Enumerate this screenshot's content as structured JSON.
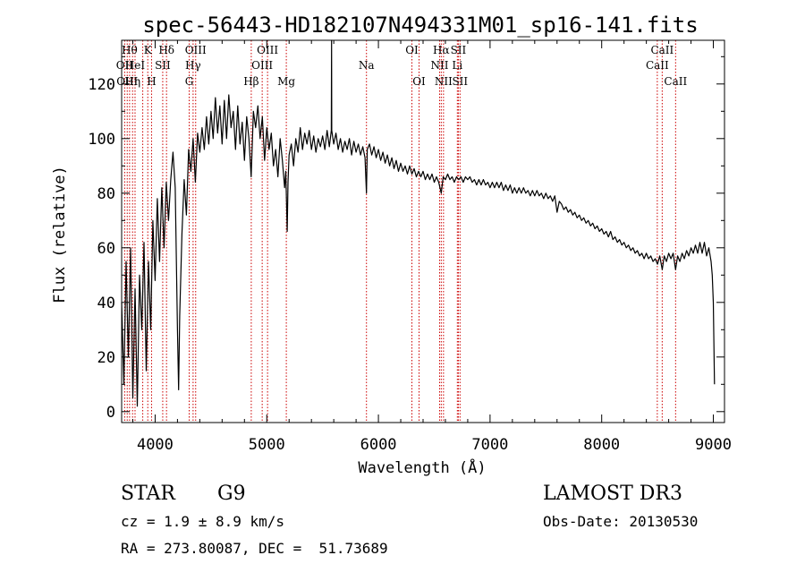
{
  "chart_data": {
    "type": "line",
    "title": "spec-56443-HD182107N494331M01_sp16-141.fits",
    "xlabel": "Wavelength (Å)",
    "ylabel": "Flux (relative)",
    "xlim": [
      3700,
      9100
    ],
    "ylim": [
      -4,
      136
    ],
    "x_ticks": [
      4000,
      5000,
      6000,
      7000,
      8000,
      9000
    ],
    "y_ticks": [
      0,
      20,
      40,
      60,
      80,
      100,
      120
    ],
    "grid": false,
    "series": [
      {
        "color": "#000000",
        "points": [
          [
            3700,
            40
          ],
          [
            3720,
            10
          ],
          [
            3740,
            55
          ],
          [
            3760,
            20
          ],
          [
            3780,
            60
          ],
          [
            3800,
            5
          ],
          [
            3820,
            45
          ],
          [
            3840,
            2
          ],
          [
            3860,
            50
          ],
          [
            3880,
            30
          ],
          [
            3900,
            62
          ],
          [
            3920,
            15
          ],
          [
            3940,
            55
          ],
          [
            3960,
            30
          ],
          [
            3980,
            70
          ],
          [
            4000,
            48
          ],
          [
            4020,
            78
          ],
          [
            4040,
            55
          ],
          [
            4060,
            82
          ],
          [
            4080,
            60
          ],
          [
            4100,
            84
          ],
          [
            4120,
            70
          ],
          [
            4140,
            85
          ],
          [
            4160,
            95
          ],
          [
            4180,
            82
          ],
          [
            4200,
            30
          ],
          [
            4210,
            8
          ],
          [
            4220,
            35
          ],
          [
            4240,
            65
          ],
          [
            4260,
            85
          ],
          [
            4280,
            72
          ],
          [
            4300,
            96
          ],
          [
            4320,
            88
          ],
          [
            4340,
            100
          ],
          [
            4360,
            84
          ],
          [
            4380,
            102
          ],
          [
            4400,
            95
          ],
          [
            4420,
            104
          ],
          [
            4440,
            96
          ],
          [
            4460,
            108
          ],
          [
            4480,
            98
          ],
          [
            4500,
            110
          ],
          [
            4520,
            100
          ],
          [
            4540,
            115
          ],
          [
            4560,
            102
          ],
          [
            4580,
            112
          ],
          [
            4600,
            98
          ],
          [
            4620,
            114
          ],
          [
            4640,
            100
          ],
          [
            4660,
            116
          ],
          [
            4680,
            104
          ],
          [
            4700,
            110
          ],
          [
            4720,
            96
          ],
          [
            4740,
            112
          ],
          [
            4760,
            98
          ],
          [
            4780,
            106
          ],
          [
            4800,
            92
          ],
          [
            4820,
            108
          ],
          [
            4840,
            100
          ],
          [
            4860,
            86
          ],
          [
            4880,
            110
          ],
          [
            4900,
            104
          ],
          [
            4920,
            112
          ],
          [
            4940,
            100
          ],
          [
            4960,
            108
          ],
          [
            4980,
            92
          ],
          [
            5000,
            104
          ],
          [
            5020,
            96
          ],
          [
            5040,
            102
          ],
          [
            5060,
            90
          ],
          [
            5080,
            96
          ],
          [
            5100,
            86
          ],
          [
            5120,
            100
          ],
          [
            5140,
            92
          ],
          [
            5160,
            82
          ],
          [
            5170,
            88
          ],
          [
            5183,
            66
          ],
          [
            5190,
            84
          ],
          [
            5200,
            94
          ],
          [
            5220,
            98
          ],
          [
            5240,
            90
          ],
          [
            5260,
            100
          ],
          [
            5280,
            95
          ],
          [
            5300,
            104
          ],
          [
            5320,
            96
          ],
          [
            5340,
            102
          ],
          [
            5360,
            98
          ],
          [
            5380,
            103
          ],
          [
            5400,
            96
          ],
          [
            5420,
            101
          ],
          [
            5440,
            95
          ],
          [
            5460,
            100
          ],
          [
            5480,
            97
          ],
          [
            5500,
            101
          ],
          [
            5520,
            96
          ],
          [
            5540,
            103
          ],
          [
            5560,
            97
          ],
          [
            5578,
            103
          ],
          [
            5580,
            136
          ],
          [
            5582,
            103
          ],
          [
            5600,
            98
          ],
          [
            5620,
            102
          ],
          [
            5640,
            96
          ],
          [
            5660,
            100
          ],
          [
            5680,
            95
          ],
          [
            5700,
            99
          ],
          [
            5720,
            96
          ],
          [
            5740,
            100
          ],
          [
            5760,
            94
          ],
          [
            5780,
            99
          ],
          [
            5800,
            95
          ],
          [
            5820,
            98
          ],
          [
            5840,
            94
          ],
          [
            5860,
            97
          ],
          [
            5880,
            93
          ],
          [
            5893,
            80
          ],
          [
            5900,
            96
          ],
          [
            5920,
            98
          ],
          [
            5940,
            94
          ],
          [
            5960,
            97
          ],
          [
            5980,
            93
          ],
          [
            6000,
            96
          ],
          [
            6020,
            92
          ],
          [
            6040,
            95
          ],
          [
            6060,
            91
          ],
          [
            6080,
            94
          ],
          [
            6100,
            90
          ],
          [
            6120,
            93
          ],
          [
            6140,
            89
          ],
          [
            6160,
            92
          ],
          [
            6180,
            88
          ],
          [
            6200,
            91
          ],
          [
            6220,
            88
          ],
          [
            6240,
            90
          ],
          [
            6260,
            87
          ],
          [
            6280,
            90
          ],
          [
            6300,
            87
          ],
          [
            6320,
            89
          ],
          [
            6340,
            86
          ],
          [
            6360,
            88
          ],
          [
            6380,
            86
          ],
          [
            6400,
            88
          ],
          [
            6420,
            85
          ],
          [
            6440,
            87
          ],
          [
            6460,
            85
          ],
          [
            6480,
            87
          ],
          [
            6500,
            84
          ],
          [
            6520,
            86
          ],
          [
            6540,
            84
          ],
          [
            6563,
            80
          ],
          [
            6580,
            86
          ],
          [
            6600,
            85
          ],
          [
            6620,
            87
          ],
          [
            6640,
            85
          ],
          [
            6660,
            86
          ],
          [
            6680,
            84
          ],
          [
            6700,
            86
          ],
          [
            6720,
            85
          ],
          [
            6740,
            86
          ],
          [
            6760,
            84
          ],
          [
            6780,
            86
          ],
          [
            6800,
            85
          ],
          [
            6820,
            86
          ],
          [
            6840,
            84
          ],
          [
            6860,
            85
          ],
          [
            6880,
            83
          ],
          [
            6900,
            85
          ],
          [
            6920,
            83
          ],
          [
            6940,
            85
          ],
          [
            6960,
            83
          ],
          [
            6980,
            84
          ],
          [
            7000,
            82
          ],
          [
            7020,
            84
          ],
          [
            7040,
            82
          ],
          [
            7060,
            84
          ],
          [
            7080,
            82
          ],
          [
            7100,
            84
          ],
          [
            7120,
            81
          ],
          [
            7140,
            83
          ],
          [
            7160,
            81
          ],
          [
            7180,
            83
          ],
          [
            7200,
            80
          ],
          [
            7220,
            82
          ],
          [
            7240,
            80
          ],
          [
            7260,
            82
          ],
          [
            7280,
            80
          ],
          [
            7300,
            82
          ],
          [
            7320,
            80
          ],
          [
            7340,
            81
          ],
          [
            7360,
            79
          ],
          [
            7380,
            81
          ],
          [
            7400,
            79
          ],
          [
            7420,
            81
          ],
          [
            7440,
            79
          ],
          [
            7460,
            80
          ],
          [
            7480,
            78
          ],
          [
            7500,
            80
          ],
          [
            7520,
            78
          ],
          [
            7540,
            79
          ],
          [
            7560,
            77
          ],
          [
            7580,
            79
          ],
          [
            7600,
            73
          ],
          [
            7620,
            77
          ],
          [
            7640,
            76
          ],
          [
            7660,
            74
          ],
          [
            7680,
            75
          ],
          [
            7700,
            73
          ],
          [
            7720,
            74
          ],
          [
            7740,
            72
          ],
          [
            7760,
            73
          ],
          [
            7780,
            71
          ],
          [
            7800,
            72
          ],
          [
            7820,
            70
          ],
          [
            7840,
            71
          ],
          [
            7860,
            69
          ],
          [
            7880,
            70
          ],
          [
            7900,
            68
          ],
          [
            7920,
            69
          ],
          [
            7940,
            67
          ],
          [
            7960,
            68
          ],
          [
            7980,
            66
          ],
          [
            8000,
            67
          ],
          [
            8020,
            65
          ],
          [
            8040,
            66
          ],
          [
            8060,
            64
          ],
          [
            8080,
            66
          ],
          [
            8100,
            63
          ],
          [
            8120,
            64
          ],
          [
            8140,
            62
          ],
          [
            8160,
            63
          ],
          [
            8180,
            61
          ],
          [
            8200,
            62
          ],
          [
            8220,
            60
          ],
          [
            8240,
            61
          ],
          [
            8260,
            59
          ],
          [
            8280,
            60
          ],
          [
            8300,
            58
          ],
          [
            8320,
            59
          ],
          [
            8340,
            57
          ],
          [
            8360,
            58
          ],
          [
            8380,
            56
          ],
          [
            8400,
            58
          ],
          [
            8420,
            56
          ],
          [
            8440,
            57
          ],
          [
            8460,
            55
          ],
          [
            8480,
            56
          ],
          [
            8500,
            54
          ],
          [
            8520,
            57
          ],
          [
            8542,
            52
          ],
          [
            8560,
            57
          ],
          [
            8580,
            55
          ],
          [
            8600,
            58
          ],
          [
            8620,
            56
          ],
          [
            8640,
            58
          ],
          [
            8662,
            52
          ],
          [
            8680,
            57
          ],
          [
            8700,
            55
          ],
          [
            8720,
            58
          ],
          [
            8740,
            56
          ],
          [
            8760,
            59
          ],
          [
            8780,
            57
          ],
          [
            8800,
            60
          ],
          [
            8820,
            58
          ],
          [
            8840,
            61
          ],
          [
            8860,
            58
          ],
          [
            8880,
            62
          ],
          [
            8900,
            58
          ],
          [
            8920,
            62
          ],
          [
            8940,
            57
          ],
          [
            8960,
            60
          ],
          [
            8980,
            55
          ],
          [
            8990,
            50
          ],
          [
            9000,
            40
          ],
          [
            9010,
            10
          ]
        ]
      }
    ],
    "line_markers": [
      {
        "x": 3727,
        "label": "OII",
        "row": 1
      },
      {
        "x": 3750,
        "label": "OIII",
        "row": 2
      },
      {
        "x": 3771,
        "label": "Hθ",
        "row": 0
      },
      {
        "x": 3798,
        "label": "Hη",
        "row": 2
      },
      {
        "x": 3820,
        "label": "HeI",
        "row": 1
      },
      {
        "x": 3889,
        "label": "",
        "row": 0
      },
      {
        "x": 3934,
        "label": "K",
        "row": 0
      },
      {
        "x": 3968,
        "label": "H",
        "row": 2
      },
      {
        "x": 4068,
        "label": "SII",
        "row": 1
      },
      {
        "x": 4102,
        "label": "Hδ",
        "row": 0
      },
      {
        "x": 4305,
        "label": "G",
        "row": 2
      },
      {
        "x": 4340,
        "label": "Hγ",
        "row": 1
      },
      {
        "x": 4363,
        "label": "OIII",
        "row": 0
      },
      {
        "x": 4861,
        "label": "Hβ",
        "row": 2
      },
      {
        "x": 4959,
        "label": "OIII",
        "row": 1
      },
      {
        "x": 5007,
        "label": "OIII",
        "row": 0
      },
      {
        "x": 5175,
        "label": "Mg",
        "row": 2
      },
      {
        "x": 5893,
        "label": "Na",
        "row": 1
      },
      {
        "x": 6300,
        "label": "OI",
        "row": 0
      },
      {
        "x": 6364,
        "label": "OI",
        "row": 2
      },
      {
        "x": 6548,
        "label": "NII",
        "row": 1
      },
      {
        "x": 6563,
        "label": "Hα",
        "row": 0
      },
      {
        "x": 6583,
        "label": "NII",
        "row": 2
      },
      {
        "x": 6707,
        "label": "Li",
        "row": 1
      },
      {
        "x": 6716,
        "label": "SII",
        "row": 0
      },
      {
        "x": 6731,
        "label": "SII",
        "row": 2
      },
      {
        "x": 8498,
        "label": "CaII",
        "row": 1
      },
      {
        "x": 8542,
        "label": "CaII",
        "row": 0
      },
      {
        "x": 8662,
        "label": "CaII",
        "row": 2
      }
    ],
    "marker_color": "#cc0000"
  },
  "info": {
    "object_class": "STAR",
    "subclass": "G9",
    "survey": "LAMOST DR3",
    "cz": "cz = 1.9 ± 8.9 km/s",
    "obs_date": "Obs-Date: 20130530",
    "radec": "RA = 273.80087, DEC =  51.73689"
  }
}
